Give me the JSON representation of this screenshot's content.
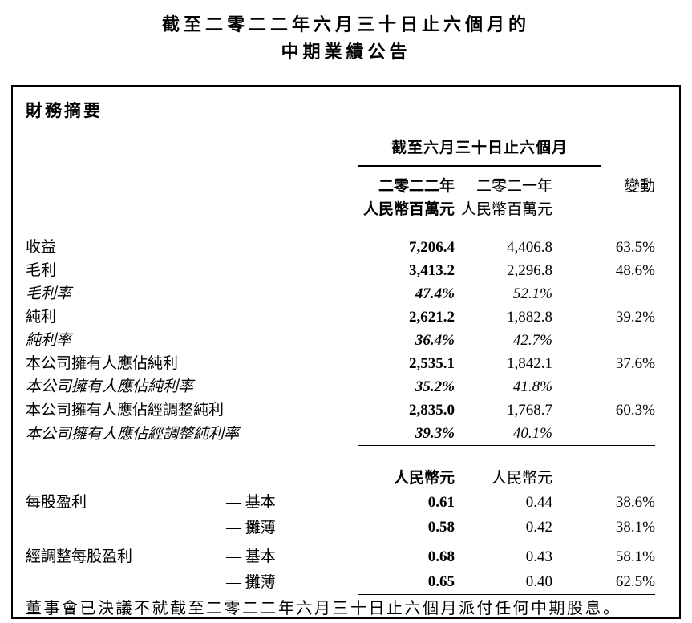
{
  "title": {
    "line1": "截至二零二二年六月三十日止六個月的",
    "line2": "中期業績公告"
  },
  "summary": {
    "heading": "財務摘要",
    "period_header": "截至六月三十日止六個月",
    "columns": {
      "y2022": "二零二二年",
      "y2021": "二零二一年",
      "change": "變動"
    },
    "units_million": {
      "y2022": "人民幣百萬元",
      "y2021": "人民幣百萬元"
    },
    "units_yuan": {
      "y2022": "人民幣元",
      "y2021": "人民幣元"
    },
    "rows": [
      {
        "label": "收益",
        "y2022": "7,206.4",
        "y2021": "4,406.8",
        "change": "63.5%"
      },
      {
        "label": "毛利",
        "y2022": "3,413.2",
        "y2021": "2,296.8",
        "change": "48.6%"
      },
      {
        "label": "毛利率",
        "y2022": "47.4%",
        "y2021": "52.1%",
        "change": ""
      },
      {
        "label": "純利",
        "y2022": "2,621.2",
        "y2021": "1,882.8",
        "change": "39.2%"
      },
      {
        "label": "純利率",
        "y2022": "36.4%",
        "y2021": "42.7%",
        "change": ""
      },
      {
        "label": "本公司擁有人應佔純利",
        "y2022": "2,535.1",
        "y2021": "1,842.1",
        "change": "37.6%"
      },
      {
        "label": "本公司擁有人應佔純利率",
        "y2022": "35.2%",
        "y2021": "41.8%",
        "change": ""
      },
      {
        "label": "本公司擁有人應佔經調整純利",
        "y2022": "2,835.0",
        "y2021": "1,768.7",
        "change": "60.3%"
      },
      {
        "label": "本公司擁有人應佔經調整純利率",
        "y2022": "39.3%",
        "y2021": "40.1%",
        "change": ""
      }
    ],
    "eps_rows": [
      {
        "label": "每股盈利",
        "sub": "— 基本",
        "y2022": "0.61",
        "y2021": "0.44",
        "change": "38.6%"
      },
      {
        "label": "",
        "sub": "— 攤薄",
        "y2022": "0.58",
        "y2021": "0.42",
        "change": "38.1%"
      },
      {
        "label": "經調整每股盈利",
        "sub": "— 基本",
        "y2022": "0.68",
        "y2021": "0.43",
        "change": "58.1%"
      },
      {
        "label": "",
        "sub": "— 攤薄",
        "y2022": "0.65",
        "y2021": "0.40",
        "change": "62.5%"
      }
    ],
    "footer": "董事會已決議不就截至二零二二年六月三十日止六個月派付任何中期股息。"
  }
}
